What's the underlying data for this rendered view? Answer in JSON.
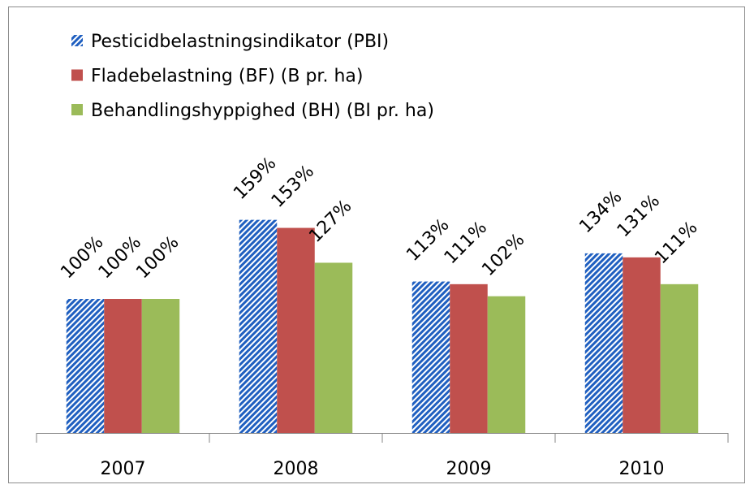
{
  "chart_data": {
    "type": "bar",
    "categories": [
      "2007",
      "2008",
      "2009",
      "2010"
    ],
    "series": [
      {
        "name": "Pesticidbelastningsindikator (PBI)",
        "color": "#1f5fc0",
        "pattern": "hatch",
        "values": [
          100,
          159,
          113,
          134
        ],
        "value_labels": [
          "100%",
          "159%",
          "113%",
          "134%"
        ]
      },
      {
        "name": "Fladebelastning (BF) (B pr. ha)",
        "color": "#c0504d",
        "values": [
          100,
          153,
          111,
          131
        ],
        "value_labels": [
          "100%",
          "153%",
          "111%",
          "131%"
        ]
      },
      {
        "name": "Behandlingshyppighed (BH) (BI pr. ha)",
        "color": "#9bbb59",
        "values": [
          100,
          127,
          102,
          111
        ],
        "value_labels": [
          "100%",
          "127%",
          "102%",
          "111%"
        ]
      }
    ],
    "ylim": [
      0,
      180
    ],
    "legend": "top-left"
  }
}
